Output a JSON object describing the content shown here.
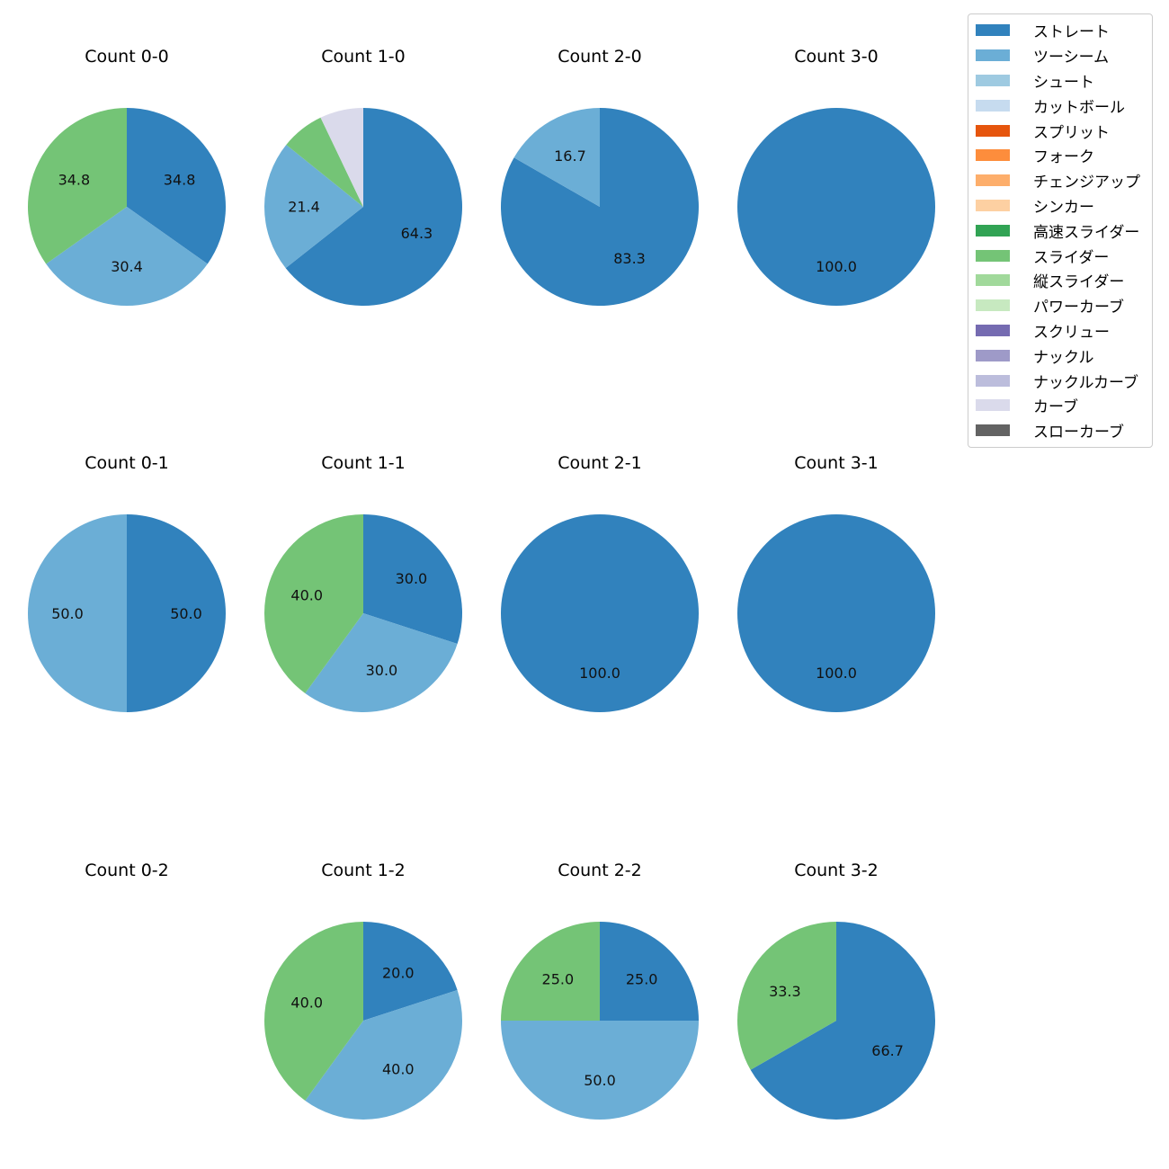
{
  "chart_data": {
    "type": "pie",
    "pitch_types": [
      {
        "name": "ストレート",
        "color": "#3182bd"
      },
      {
        "name": "ツーシーム",
        "color": "#6baed6"
      },
      {
        "name": "シュート",
        "color": "#9ecae1"
      },
      {
        "name": "カットボール",
        "color": "#c6dbef"
      },
      {
        "name": "スプリット",
        "color": "#e6550d"
      },
      {
        "name": "フォーク",
        "color": "#fd8d3c"
      },
      {
        "name": "チェンジアップ",
        "color": "#fdae6b"
      },
      {
        "name": "シンカー",
        "color": "#fdd0a2"
      },
      {
        "name": "高速スライダー",
        "color": "#31a354"
      },
      {
        "name": "スライダー",
        "color": "#74c476"
      },
      {
        "name": "縦スライダー",
        "color": "#a1d99b"
      },
      {
        "name": "パワーカーブ",
        "color": "#c7e9c0"
      },
      {
        "name": "スクリュー",
        "color": "#756bb1"
      },
      {
        "name": "ナックル",
        "color": "#9e9ac8"
      },
      {
        "name": "ナックルカーブ",
        "color": "#bcbddc"
      },
      {
        "name": "カーブ",
        "color": "#dadaeb"
      },
      {
        "name": "スローカーブ",
        "color": "#636363"
      }
    ],
    "panels": [
      {
        "title": "Count 0-0",
        "slices": [
          {
            "type": "ストレート",
            "value": 34.8,
            "label": "34.8"
          },
          {
            "type": "ツーシーム",
            "value": 30.4,
            "label": "30.4"
          },
          {
            "type": "スライダー",
            "value": 34.8,
            "label": "34.8"
          }
        ]
      },
      {
        "title": "Count 1-0",
        "slices": [
          {
            "type": "ストレート",
            "value": 64.3,
            "label": "64.3"
          },
          {
            "type": "ツーシーム",
            "value": 21.4,
            "label": "21.4"
          },
          {
            "type": "スライダー",
            "value": 7.1,
            "label": ""
          },
          {
            "type": "カーブ",
            "value": 7.1,
            "label": ""
          }
        ]
      },
      {
        "title": "Count 2-0",
        "slices": [
          {
            "type": "ストレート",
            "value": 83.3,
            "label": "83.3"
          },
          {
            "type": "ツーシーム",
            "value": 16.7,
            "label": "16.7"
          }
        ]
      },
      {
        "title": "Count 3-0",
        "slices": [
          {
            "type": "ストレート",
            "value": 100.0,
            "label": "100.0"
          }
        ]
      },
      {
        "title": "Count 0-1",
        "slices": [
          {
            "type": "ストレート",
            "value": 50.0,
            "label": "50.0"
          },
          {
            "type": "ツーシーム",
            "value": 50.0,
            "label": "50.0"
          }
        ]
      },
      {
        "title": "Count 1-1",
        "slices": [
          {
            "type": "ストレート",
            "value": 30.0,
            "label": "30.0"
          },
          {
            "type": "ツーシーム",
            "value": 30.0,
            "label": "30.0"
          },
          {
            "type": "スライダー",
            "value": 40.0,
            "label": "40.0"
          }
        ]
      },
      {
        "title": "Count 2-1",
        "slices": [
          {
            "type": "ストレート",
            "value": 100.0,
            "label": "100.0"
          }
        ]
      },
      {
        "title": "Count 3-1",
        "slices": [
          {
            "type": "ストレート",
            "value": 100.0,
            "label": "100.0"
          }
        ]
      },
      {
        "title": "Count 0-2",
        "slices": []
      },
      {
        "title": "Count 1-2",
        "slices": [
          {
            "type": "ストレート",
            "value": 20.0,
            "label": "20.0"
          },
          {
            "type": "ツーシーム",
            "value": 40.0,
            "label": "40.0"
          },
          {
            "type": "スライダー",
            "value": 40.0,
            "label": "40.0"
          }
        ]
      },
      {
        "title": "Count 2-2",
        "slices": [
          {
            "type": "ストレート",
            "value": 25.0,
            "label": "25.0"
          },
          {
            "type": "ツーシーム",
            "value": 50.0,
            "label": "50.0"
          },
          {
            "type": "スライダー",
            "value": 25.0,
            "label": "25.0"
          }
        ]
      },
      {
        "title": "Count 3-2",
        "slices": [
          {
            "type": "ストレート",
            "value": 66.7,
            "label": "66.7"
          },
          {
            "type": "スライダー",
            "value": 33.3,
            "label": "33.3"
          }
        ]
      }
    ]
  }
}
